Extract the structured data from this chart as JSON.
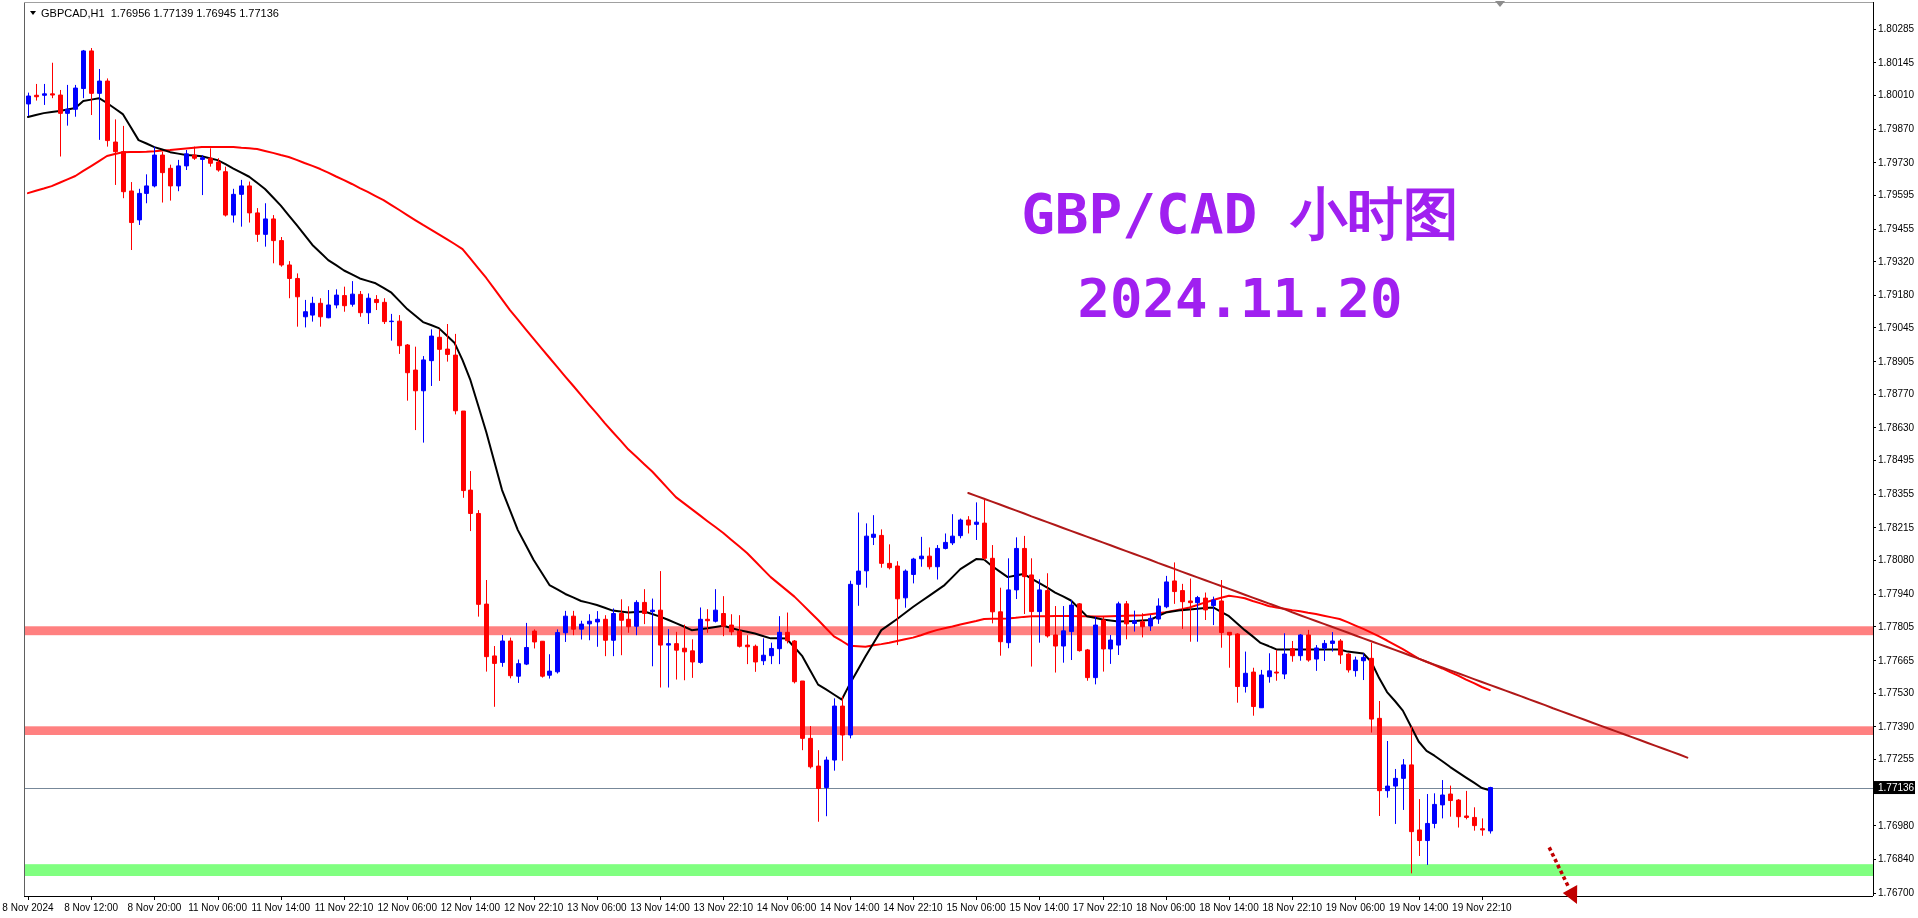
{
  "chart_data": {
    "type": "candlestick",
    "title": "GBP/CAD 小时图",
    "subtitle": "2024.11.20",
    "annotations": [
      "GBPCAD,H1  1.76956 1.77139 1.76945 1.77136"
    ],
    "categories": [
      "8 Nov 2024",
      null,
      null,
      null,
      null,
      null,
      null,
      null,
      "8 Nov 12:00",
      null,
      null,
      null,
      null,
      null,
      null,
      null,
      "8 Nov 20:00",
      null,
      null,
      null,
      null,
      null,
      null,
      null,
      "11 Nov 06:00",
      null,
      null,
      null,
      null,
      null,
      null,
      null,
      "11 Nov 14:00",
      null,
      null,
      null,
      null,
      null,
      null,
      null,
      "11 Nov 22:10",
      null,
      null,
      null,
      null,
      null,
      null,
      null,
      "12 Nov 06:00",
      null,
      null,
      null,
      null,
      null,
      null,
      null,
      "12 Nov 14:00",
      null,
      null,
      null,
      null,
      null,
      null,
      null,
      "12 Nov 22:10",
      null,
      null,
      null,
      null,
      null,
      null,
      null,
      "13 Nov 06:00",
      null,
      null,
      null,
      null,
      null,
      null,
      null,
      "13 Nov 14:00",
      null,
      null,
      null,
      null,
      null,
      null,
      null,
      "13 Nov 22:10",
      null,
      null,
      null,
      null,
      null,
      null,
      null,
      "14 Nov 06:00",
      null,
      null,
      null,
      null,
      null,
      null,
      null,
      "14 Nov 14:00",
      null,
      null,
      null,
      null,
      null,
      null,
      null,
      "14 Nov 22:10",
      null,
      null,
      null,
      null,
      null,
      null,
      null,
      "15 Nov 06:00",
      null,
      null,
      null,
      null,
      null,
      null,
      null,
      "15 Nov 14:00",
      null,
      null,
      null,
      null,
      null,
      null,
      null,
      "17 Nov 22:10",
      null,
      null,
      null,
      null,
      null,
      null,
      null,
      "18 Nov 06:00",
      null,
      null,
      null,
      null,
      null,
      null,
      null,
      "18 Nov 14:00",
      null,
      null,
      null,
      null,
      null,
      null,
      null,
      "18 Nov 22:10",
      null,
      null,
      null,
      null,
      null,
      null,
      null,
      "19 Nov 06:00",
      null,
      null,
      null,
      null,
      null,
      null,
      null,
      "19 Nov 14:00",
      null,
      null,
      null,
      null,
      null,
      null,
      null,
      "19 Nov 22:10",
      null,
      null,
      null,
      null,
      null,
      null,
      null,
      null,
      null,
      null,
      null,
      null,
      null,
      null,
      null,
      null,
      null,
      null,
      null,
      null,
      null,
      null,
      null,
      null,
      null,
      null,
      null,
      null,
      null,
      null,
      null,
      null,
      null,
      null,
      null,
      null,
      null,
      null,
      null,
      null,
      null,
      null,
      null,
      null,
      null,
      null,
      null,
      null,
      null
    ],
    "ylim": [
      1.76686,
      1.80395
    ],
    "yticks": [
      1.80285,
      1.80145,
      {
        "value": 1.8001,
        "label": "1.80010"
      },
      {
        "value": 1.7987,
        "label": "1.79870"
      },
      {
        "value": 1.7973,
        "label": "1.79730"
      },
      1.79595,
      1.79455,
      {
        "value": 1.7932,
        "label": "1.79320"
      },
      {
        "value": 1.7918,
        "label": "1.79180"
      },
      1.79045,
      1.78905,
      {
        "value": 1.7877,
        "label": "1.78770"
      },
      {
        "value": 1.7863,
        "label": "1.78630"
      },
      1.78495,
      1.78355,
      1.78215,
      {
        "value": 1.7808,
        "label": "1.78080"
      },
      {
        "value": 1.7794,
        "label": "1.77940"
      },
      1.77805,
      1.77665,
      {
        "value": 1.7753,
        "label": "1.77530"
      },
      {
        "value": 1.7739,
        "label": "1.77390"
      },
      1.77255,
      {
        "value": 1.7698,
        "label": "1.76980"
      },
      {
        "value": 1.7684,
        "label": "1.76840"
      },
      {
        "value": 1.767,
        "label": "1.76700"
      }
    ],
    "ref_lines": [
      {
        "axis": "y",
        "value": 1.77136,
        "label": "1.77136",
        "color": "#778899"
      }
    ],
    "bands": [
      {
        "axis": "y",
        "from": 1.77768,
        "to": 1.77805,
        "color": "#ff8080"
      },
      {
        "axis": "y",
        "from": 1.77354,
        "to": 1.7739,
        "color": "#ff8080"
      },
      {
        "axis": "y",
        "from": 1.76769,
        "to": 1.76818,
        "color": "#80ff80"
      }
    ],
    "ohlc": [
      [
        1.79972,
        1.80019,
        1.79922,
        1.80005
      ],
      [
        1.80008,
        1.80055,
        1.79986,
        1.80002
      ],
      [
        1.80008,
        1.80055,
        1.79968,
        1.80014
      ],
      [
        1.80014,
        1.80143,
        1.79996,
        1.80009
      ],
      [
        1.80009,
        1.8003,
        1.79754,
        1.79933
      ],
      [
        1.79933,
        1.80051,
        1.79882,
        1.7995
      ],
      [
        1.7995,
        1.80051,
        1.79919,
        1.80038
      ],
      [
        1.80036,
        1.80196,
        1.79996,
        1.80192
      ],
      [
        1.80192,
        1.80204,
        1.79926,
        1.80016
      ],
      [
        1.80016,
        1.80117,
        1.79823,
        1.80067
      ],
      [
        1.80067,
        1.80078,
        1.79795,
        1.7982
      ],
      [
        1.79814,
        1.79908,
        1.79636,
        1.79774
      ],
      [
        1.79774,
        1.79881,
        1.79581,
        1.79608
      ],
      [
        1.79611,
        1.79648,
        1.79366,
        1.7948
      ],
      [
        1.79491,
        1.7962,
        1.7947,
        1.79601
      ],
      [
        1.79601,
        1.7968,
        1.7956,
        1.79632
      ],
      [
        1.79632,
        1.79795,
        1.79626,
        1.7976
      ],
      [
        1.7976,
        1.79774,
        1.79563,
        1.79687
      ],
      [
        1.79705,
        1.7972,
        1.79571,
        1.79632
      ],
      [
        1.79632,
        1.7974,
        1.7961,
        1.79715
      ],
      [
        1.79715,
        1.79781,
        1.79698,
        1.79765
      ],
      [
        1.7976,
        1.79795,
        1.7974,
        1.79747
      ],
      [
        1.79742,
        1.7976,
        1.79594,
        1.79749
      ],
      [
        1.79747,
        1.79788,
        1.79712,
        1.79726
      ],
      [
        1.79731,
        1.79747,
        1.79691,
        1.79698
      ],
      [
        1.79691,
        1.79712,
        1.79505,
        1.79511
      ],
      [
        1.79511,
        1.7962,
        1.7948,
        1.79597
      ],
      [
        1.79597,
        1.79657,
        1.79463,
        1.79632
      ],
      [
        1.79632,
        1.7965,
        1.7948,
        1.7952
      ],
      [
        1.7952,
        1.7954,
        1.794,
        1.79431
      ],
      [
        1.79431,
        1.7956,
        1.7938,
        1.79495
      ],
      [
        1.79495,
        1.79511,
        1.79311,
        1.79405
      ],
      [
        1.79405,
        1.7942,
        1.79297,
        1.79304
      ],
      [
        1.79304,
        1.7932,
        1.79166,
        1.79248
      ],
      [
        1.79248,
        1.79269,
        1.79048,
        1.79172
      ],
      [
        1.79089,
        1.79159,
        1.79045,
        1.7911
      ],
      [
        1.79096,
        1.79172,
        1.79069,
        1.79145
      ],
      [
        1.79145,
        1.79166,
        1.79048,
        1.79089
      ],
      [
        1.79085,
        1.792,
        1.79083,
        1.79138
      ],
      [
        1.79138,
        1.79203,
        1.79124,
        1.79179
      ],
      [
        1.79177,
        1.79214,
        1.7911,
        1.79135
      ],
      [
        1.79141,
        1.79237,
        1.79131,
        1.79183
      ],
      [
        1.79182,
        1.79196,
        1.79089,
        1.79106
      ],
      [
        1.79106,
        1.79186,
        1.79059,
        1.79166
      ],
      [
        1.79161,
        1.79179,
        1.79117,
        1.79148
      ],
      [
        1.79149,
        1.79166,
        1.79059,
        1.79069
      ],
      [
        1.79069,
        1.79101,
        1.7899,
        1.79071
      ],
      [
        1.79071,
        1.79096,
        1.78935,
        1.78969
      ],
      [
        1.78972,
        1.78976,
        1.78741,
        1.78857
      ],
      [
        1.78868,
        1.78965,
        1.78619,
        1.78782
      ],
      [
        1.78782,
        1.78926,
        1.78567,
        1.7891
      ],
      [
        1.78907,
        1.79037,
        1.78802,
        1.79009
      ],
      [
        1.79004,
        1.79037,
        1.78823,
        1.78954
      ],
      [
        1.78955,
        1.79059,
        1.78903,
        1.78933
      ],
      [
        1.7893,
        1.79018,
        1.78684,
        1.78699
      ],
      [
        1.78698,
        1.78698,
        1.78338,
        1.78368
      ],
      [
        1.7837,
        1.78449,
        1.782,
        1.78273
      ],
      [
        1.78273,
        1.78287,
        1.77845,
        1.77896
      ],
      [
        1.77897,
        1.77997,
        1.77617,
        1.77679
      ],
      [
        1.77682,
        1.77723,
        1.77471,
        1.77651
      ],
      [
        1.77655,
        1.77769,
        1.77637,
        1.77744
      ],
      [
        1.77744,
        1.77758,
        1.77589,
        1.776
      ],
      [
        1.77598,
        1.77667,
        1.7757,
        1.7765
      ],
      [
        1.77648,
        1.77819,
        1.77644,
        1.77717
      ],
      [
        1.77785,
        1.77792,
        1.77713,
        1.7774
      ],
      [
        1.77743,
        1.77743,
        1.77592,
        1.77598
      ],
      [
        1.77602,
        1.77689,
        1.77588,
        1.77619
      ],
      [
        1.77616,
        1.77792,
        1.77609,
        1.77779
      ],
      [
        1.77778,
        1.77869,
        1.7774,
        1.77847
      ],
      [
        1.77847,
        1.77869,
        1.77768,
        1.77793
      ],
      [
        1.77793,
        1.77828,
        1.7775,
        1.77814
      ],
      [
        1.77815,
        1.77855,
        1.77747,
        1.77826
      ],
      [
        1.77823,
        1.77868,
        1.7772,
        1.77834
      ],
      [
        1.77834,
        1.77851,
        1.77681,
        1.77747
      ],
      [
        1.77747,
        1.77879,
        1.77681,
        1.77858
      ],
      [
        1.77858,
        1.77917,
        1.77685,
        1.7783
      ],
      [
        1.77834,
        1.77888,
        1.77778,
        1.77803
      ],
      [
        1.77805,
        1.77913,
        1.77768,
        1.77904
      ],
      [
        1.77904,
        1.77959,
        1.77814,
        1.77858
      ],
      [
        1.77866,
        1.7792,
        1.77639,
        1.77872
      ],
      [
        1.77872,
        1.78034,
        1.77551,
        1.77727
      ],
      [
        1.77727,
        1.77793,
        1.77551,
        1.77733
      ],
      [
        1.77733,
        1.77782,
        1.77584,
        1.77706
      ],
      [
        1.77714,
        1.77812,
        1.77581,
        1.77699
      ],
      [
        1.77703,
        1.77751,
        1.77591,
        1.77657
      ],
      [
        1.77655,
        1.77883,
        1.7765,
        1.77834
      ],
      [
        1.77834,
        1.77876,
        1.77778,
        1.77828
      ],
      [
        1.77826,
        1.77959,
        1.77821,
        1.77872
      ],
      [
        1.77858,
        1.7793,
        1.77764,
        1.77805
      ],
      [
        1.7781,
        1.77855,
        1.77768,
        1.77782
      ],
      [
        1.77785,
        1.77851,
        1.77717,
        1.77722
      ],
      [
        1.77727,
        1.77768,
        1.77648,
        1.7772
      ],
      [
        1.77722,
        1.77729,
        1.77616,
        1.77657
      ],
      [
        1.77662,
        1.77755,
        1.77644,
        1.77685
      ],
      [
        1.77683,
        1.77737,
        1.77648,
        1.77713
      ],
      [
        1.77712,
        1.77847,
        1.77648,
        1.7778
      ],
      [
        1.7778,
        1.77862,
        1.77734,
        1.77745
      ],
      [
        1.77744,
        1.77748,
        1.77568,
        1.77575
      ],
      [
        1.77578,
        1.77578,
        1.77291,
        1.7734
      ],
      [
        1.7734,
        1.77391,
        1.77215,
        1.77222
      ],
      [
        1.77225,
        1.77291,
        1.76994,
        1.77132
      ],
      [
        1.77136,
        1.77264,
        1.77017,
        1.7725
      ],
      [
        1.7725,
        1.77506,
        1.77206,
        1.77474
      ],
      [
        1.77474,
        1.77515,
        1.77247,
        1.77354
      ],
      [
        1.77354,
        1.77994,
        1.7734,
        1.77979
      ],
      [
        1.77979,
        1.78277,
        1.7789,
        1.78034
      ],
      [
        1.78035,
        1.78232,
        1.77965,
        1.78179
      ],
      [
        1.78174,
        1.78266,
        1.78142,
        1.78187
      ],
      [
        1.78182,
        1.78207,
        1.78048,
        1.78066
      ],
      [
        1.78066,
        1.78145,
        1.78041,
        1.78048
      ],
      [
        1.78055,
        1.78075,
        1.77727,
        1.77919
      ],
      [
        1.77923,
        1.78041,
        1.77882,
        1.78034
      ],
      [
        1.7802,
        1.78089,
        1.77983,
        1.78084
      ],
      [
        1.78085,
        1.78176,
        1.78052,
        1.78096
      ],
      [
        1.78096,
        1.78132,
        1.78041,
        1.78052
      ],
      [
        1.78052,
        1.78142,
        1.77999,
        1.78128
      ],
      [
        1.78128,
        1.7819,
        1.78124,
        1.78153
      ],
      [
        1.78151,
        1.7827,
        1.78142,
        1.78179
      ],
      [
        1.78181,
        1.78252,
        1.7817,
        1.78246
      ],
      [
        1.78246,
        1.78262,
        1.7819,
        1.78225
      ],
      [
        1.78228,
        1.78319,
        1.78163,
        1.78237
      ],
      [
        1.78233,
        1.78333,
        1.7808,
        1.78087
      ],
      [
        1.78087,
        1.78142,
        1.77817,
        1.77865
      ],
      [
        1.77865,
        1.77965,
        1.77683,
        1.77741
      ],
      [
        1.77737,
        1.78087,
        1.77714,
        1.77956
      ],
      [
        1.77956,
        1.78174,
        1.77918,
        1.78128
      ],
      [
        1.78128,
        1.7818,
        1.77856,
        1.78011
      ],
      [
        1.78018,
        1.78087,
        1.77638,
        1.77866
      ],
      [
        1.77866,
        1.78,
        1.77737,
        1.77956
      ],
      [
        1.77953,
        1.78025,
        1.77758,
        1.77765
      ],
      [
        1.77769,
        1.77889,
        1.77613,
        1.77723
      ],
      [
        1.77723,
        1.77889,
        1.77654,
        1.77786
      ],
      [
        1.77783,
        1.77914,
        1.77665,
        1.77893
      ],
      [
        1.77898,
        1.77901,
        1.777,
        1.77704
      ],
      [
        1.77707,
        1.77711,
        1.77579,
        1.77592
      ],
      [
        1.77592,
        1.77845,
        1.77564,
        1.7781
      ],
      [
        1.77831,
        1.77845,
        1.77617,
        1.77711
      ],
      [
        1.77711,
        1.77769,
        1.77649,
        1.77748
      ],
      [
        1.77727,
        1.77907,
        1.77686,
        1.77898
      ],
      [
        1.77898,
        1.7791,
        1.77751,
        1.77815
      ],
      [
        1.77817,
        1.7787,
        1.77783,
        1.77828
      ],
      [
        1.77824,
        1.77859,
        1.77759,
        1.77803
      ],
      [
        1.77806,
        1.77852,
        1.77786,
        1.77838
      ],
      [
        1.77835,
        1.77921,
        1.77815,
        1.77889
      ],
      [
        1.77886,
        1.78014,
        1.7788,
        1.77989
      ],
      [
        1.77993,
        1.7807,
        1.77898,
        1.77949
      ],
      [
        1.77953,
        1.77981,
        1.77794,
        1.77907
      ],
      [
        1.7791,
        1.78003,
        1.77741,
        1.77903
      ],
      [
        1.77903,
        1.77931,
        1.77741,
        1.77924
      ],
      [
        1.77922,
        1.77945,
        1.77831,
        1.77873
      ],
      [
        1.77891,
        1.77928,
        1.7781,
        1.77914
      ],
      [
        1.7791,
        1.77997,
        1.77716,
        1.77779
      ],
      [
        1.7778,
        1.7778,
        1.77633,
        1.77769
      ],
      [
        1.77773,
        1.77776,
        1.77488,
        1.77555
      ],
      [
        1.77555,
        1.777,
        1.7753,
        1.7761
      ],
      [
        1.77615,
        1.77633,
        1.77434,
        1.77472
      ],
      [
        1.77467,
        1.77624,
        1.77467,
        1.77603
      ],
      [
        1.77596,
        1.77693,
        1.77571,
        1.7762
      ],
      [
        1.77615,
        1.77707,
        1.77579,
        1.77611
      ],
      [
        1.77607,
        1.77776,
        1.77586,
        1.7769
      ],
      [
        1.77712,
        1.77744,
        1.77658,
        1.77683
      ],
      [
        1.77683,
        1.77773,
        1.77662,
        1.77769
      ],
      [
        1.77769,
        1.7779,
        1.77658,
        1.77665
      ],
      [
        1.77669,
        1.77727,
        1.7762,
        1.77715
      ],
      [
        1.77714,
        1.77748,
        1.77661,
        1.77734
      ],
      [
        1.77734,
        1.77781,
        1.777,
        1.77744
      ],
      [
        1.77744,
        1.77752,
        1.77649,
        1.77686
      ],
      [
        1.7769,
        1.77693,
        1.77613,
        1.77624
      ],
      [
        1.77621,
        1.77679,
        1.77596,
        1.77665
      ],
      [
        1.77662,
        1.77693,
        1.77582,
        1.77676
      ],
      [
        1.77672,
        1.77737,
        1.77364,
        1.7742
      ],
      [
        1.77423,
        1.77495,
        1.77018,
        1.77123
      ],
      [
        1.77123,
        1.77329,
        1.77094,
        1.77142
      ],
      [
        1.77142,
        1.77213,
        1.76985,
        1.77174
      ],
      [
        1.77174,
        1.77254,
        1.77043,
        1.7723
      ],
      [
        1.7723,
        1.77389,
        1.7678,
        1.76953
      ],
      [
        1.7696,
        1.77088,
        1.76852,
        1.76916
      ],
      [
        1.76916,
        1.77109,
        1.76815,
        1.76987
      ],
      [
        1.76987,
        1.77112,
        1.76967,
        1.77066
      ],
      [
        1.77064,
        1.77167,
        1.77008,
        1.77105
      ],
      [
        1.77109,
        1.77144,
        1.77015,
        1.77082
      ],
      [
        1.77084,
        1.77088,
        1.7697,
        1.77015
      ],
      [
        1.77018,
        1.77122,
        1.77004,
        1.77012
      ],
      [
        1.77012,
        1.77054,
        1.76957,
        1.76978
      ],
      [
        1.76965,
        1.77008,
        1.76936,
        1.7696
      ],
      [
        1.76956,
        1.77139,
        1.76945,
        1.77136
      ],
      null,
      null,
      null,
      null,
      null,
      null,
      null,
      null,
      null,
      null,
      null,
      null,
      null,
      null,
      null,
      null,
      null,
      null,
      null,
      null,
      null,
      null,
      null,
      null,
      null,
      null,
      null,
      null,
      null,
      null,
      null,
      null,
      null,
      null,
      null,
      null,
      null,
      null,
      null,
      null,
      null,
      null,
      null,
      null,
      null,
      null,
      null,
      null
    ],
    "colors": [
      "#0000ff",
      "#ff0000",
      "#0000ff",
      "#ff0000",
      "#ff0000",
      "#0000ff",
      "#0000ff",
      "#0000ff",
      "#ff0000",
      "#0000ff",
      "#ff0000",
      "#ff0000",
      "#ff0000",
      "#ff0000",
      "#0000ff",
      "#0000ff",
      "#0000ff",
      "#ff0000",
      "#ff0000",
      "#0000ff",
      "#0000ff",
      "#ff0000",
      "#0000ff",
      "#ff0000",
      "#ff0000",
      "#ff0000",
      "#0000ff",
      "#0000ff",
      "#ff0000",
      "#ff0000",
      "#0000ff",
      "#ff0000",
      "#ff0000",
      "#ff0000",
      "#ff0000",
      "#0000ff",
      "#0000ff",
      "#ff0000",
      "#0000ff",
      "#0000ff",
      "#ff0000",
      "#0000ff",
      "#ff0000",
      "#0000ff",
      "#ff0000",
      "#ff0000",
      "#0000ff",
      "#ff0000",
      "#ff0000",
      "#ff0000",
      "#0000ff",
      "#0000ff",
      "#ff0000",
      "#ff0000",
      "#ff0000",
      "#ff0000",
      "#ff0000",
      "#ff0000",
      "#ff0000",
      "#ff0000",
      "#0000ff",
      "#ff0000",
      "#0000ff",
      "#0000ff",
      "#ff0000",
      "#ff0000",
      "#0000ff",
      "#0000ff",
      "#0000ff",
      "#ff0000",
      "#0000ff",
      "#0000ff",
      "#0000ff",
      "#ff0000",
      "#0000ff",
      "#ff0000",
      "#ff0000",
      "#0000ff",
      "#ff0000",
      "#0000ff",
      "#ff0000",
      "#0000ff",
      "#ff0000",
      "#ff0000",
      "#ff0000",
      "#0000ff",
      "#ff0000",
      "#0000ff",
      "#ff0000",
      "#ff0000",
      "#ff0000",
      "#ff0000",
      "#ff0000",
      "#0000ff",
      "#0000ff",
      "#0000ff",
      "#ff0000",
      "#ff0000",
      "#ff0000",
      "#ff0000",
      "#ff0000",
      "#0000ff",
      "#0000ff",
      "#ff0000",
      "#0000ff",
      "#0000ff",
      "#0000ff",
      "#0000ff",
      "#ff0000",
      "#ff0000",
      "#ff0000",
      "#0000ff",
      "#0000ff",
      "#0000ff",
      "#ff0000",
      "#0000ff",
      "#0000ff",
      "#0000ff",
      "#0000ff",
      "#ff0000",
      "#0000ff",
      "#ff0000",
      "#ff0000",
      "#ff0000",
      "#0000ff",
      "#0000ff",
      "#ff0000",
      "#ff0000",
      "#0000ff",
      "#ff0000",
      "#ff0000",
      "#0000ff",
      "#0000ff",
      "#ff0000",
      "#ff0000",
      "#0000ff",
      "#ff0000",
      "#0000ff",
      "#0000ff",
      "#ff0000",
      "#0000ff",
      "#ff0000",
      "#0000ff",
      "#0000ff",
      "#0000ff",
      "#ff0000",
      "#ff0000",
      "#ff0000",
      "#0000ff",
      "#ff0000",
      "#0000ff",
      "#ff0000",
      "#ff0000",
      "#ff0000",
      "#0000ff",
      "#ff0000",
      "#0000ff",
      "#0000ff",
      "#ff0000",
      "#0000ff",
      "#ff0000",
      "#0000ff",
      "#ff0000",
      "#0000ff",
      "#0000ff",
      "#0000ff",
      "#ff0000",
      "#ff0000",
      "#0000ff",
      "#0000ff",
      "#ff0000",
      "#ff0000",
      "#0000ff",
      "#0000ff",
      "#0000ff",
      "#ff0000",
      "#ff0000",
      "#0000ff",
      "#0000ff",
      "#0000ff",
      "#ff0000",
      "#ff0000",
      "#ff0000",
      "#ff0000",
      "#ff0000",
      "#0000ff",
      null,
      null,
      null,
      null,
      null,
      null,
      null,
      null,
      null,
      null,
      null,
      null,
      null,
      null,
      null,
      null,
      null,
      null,
      null,
      null,
      null,
      null,
      null,
      null,
      null,
      null,
      null,
      null,
      null,
      null,
      null,
      null,
      null,
      null,
      null,
      null,
      null,
      null,
      null,
      null,
      null,
      null,
      null,
      null,
      null,
      null,
      null,
      null
    ],
    "series": [
      {
        "type": "line",
        "color": "#ff0000",
        "values": [
          1.79602,
          1.79612,
          1.79621,
          1.79631,
          1.79645,
          1.79659,
          1.79673,
          1.79694,
          1.79714,
          1.79735,
          1.79756,
          1.79764,
          1.79772,
          1.79773,
          1.79773,
          1.79774,
          1.79776,
          1.79779,
          1.79781,
          1.79784,
          1.79787,
          1.7979,
          1.79793,
          1.79793,
          1.79793,
          1.79793,
          1.79793,
          1.7979,
          1.79788,
          1.79785,
          1.79777,
          1.79769,
          1.7976,
          1.79752,
          1.7974,
          1.79727,
          1.79715,
          1.79702,
          1.79687,
          1.79671,
          1.79656,
          1.7964,
          1.79623,
          1.79607,
          1.7959,
          1.79573,
          1.79552,
          1.79532,
          1.79511,
          1.7949,
          1.7947,
          1.79451,
          1.79431,
          1.79411,
          1.79391,
          1.7937,
          1.7933,
          1.7929,
          1.7925,
          1.79206,
          1.79161,
          1.79117,
          1.79077,
          1.79037,
          1.78997,
          1.78958,
          1.78919,
          1.7888,
          1.78841,
          1.78803,
          1.78764,
          1.78725,
          1.78687,
          1.78648,
          1.78611,
          1.78575,
          1.78538,
          1.78508,
          1.78477,
          1.78447,
          1.78412,
          1.78376,
          1.78341,
          1.78316,
          1.78291,
          1.78266,
          1.78241,
          1.78217,
          1.78192,
          1.78164,
          1.78137,
          1.78109,
          1.78076,
          1.78042,
          1.78009,
          1.77982,
          1.77955,
          1.77928,
          1.77896,
          1.77863,
          1.77831,
          1.77797,
          1.77763,
          1.77744,
          1.77724,
          1.77722,
          1.7772,
          1.77726,
          1.77731,
          1.77737,
          1.77744,
          1.77751,
          1.77758,
          1.77768,
          1.77779,
          1.77789,
          1.77797,
          1.77804,
          1.77812,
          1.7782,
          1.77827,
          1.77835,
          1.77836,
          1.77836,
          1.77837,
          1.7784,
          1.77844,
          1.77847,
          1.77847,
          1.77847,
          1.77848,
          1.77848,
          1.77848,
          1.77847,
          1.77847,
          1.77846,
          1.77846,
          1.77847,
          1.77848,
          1.77849,
          1.7785,
          1.77851,
          1.77855,
          1.77859,
          1.77863,
          1.7787,
          1.77876,
          1.77883,
          1.77893,
          1.77904,
          1.77914,
          1.77923,
          1.77932,
          1.77927,
          1.77921,
          1.7791,
          1.779,
          1.77889,
          1.77883,
          1.77878,
          1.77872,
          1.77867,
          1.77861,
          1.77856,
          1.77849,
          1.77842,
          1.77835,
          1.77822,
          1.77808,
          1.77794,
          1.77779,
          1.77763,
          1.77746,
          1.77728,
          1.7771,
          1.77691,
          1.77671,
          1.77658,
          1.77644,
          1.7763,
          1.77615,
          1.776,
          1.77584,
          1.77569,
          1.77553,
          1.7754,
          null,
          null,
          null,
          null,
          null,
          null,
          null,
          null,
          null,
          null,
          null,
          null,
          null,
          null,
          null,
          null,
          null,
          null,
          null,
          null,
          null,
          null,
          null,
          null,
          null,
          null,
          null,
          null,
          null,
          null,
          null,
          null,
          null,
          null,
          null,
          null,
          null,
          null,
          null,
          null,
          null,
          null,
          null,
          null,
          null,
          null,
          null,
          null
        ]
      },
      {
        "type": "line",
        "color": "#000000",
        "values": [
          1.79918,
          1.79926,
          1.79934,
          1.79939,
          1.79943,
          1.79949,
          1.79955,
          1.79984,
          1.7999,
          1.79996,
          1.79976,
          1.79953,
          1.7993,
          1.79876,
          1.79822,
          1.79808,
          1.79793,
          1.79783,
          1.79772,
          1.79766,
          1.7976,
          1.79758,
          1.79755,
          1.79747,
          1.79739,
          1.79722,
          1.79704,
          1.79687,
          1.7967,
          1.79645,
          1.79619,
          1.79585,
          1.7955,
          1.7951,
          1.7947,
          1.79429,
          1.79387,
          1.79356,
          1.79324,
          1.79303,
          1.79281,
          1.79265,
          1.79248,
          1.79238,
          1.79228,
          1.79209,
          1.79189,
          1.79155,
          1.79121,
          1.79094,
          1.79067,
          1.79055,
          1.79042,
          1.79011,
          1.7898,
          1.78909,
          1.78826,
          1.78719,
          1.78611,
          1.78491,
          1.7837,
          1.78287,
          1.78204,
          1.78142,
          1.7808,
          1.78028,
          1.77976,
          1.77958,
          1.77939,
          1.77925,
          1.7791,
          1.77902,
          1.77893,
          1.77882,
          1.7787,
          1.77866,
          1.77862,
          1.77864,
          1.77866,
          1.77856,
          1.77845,
          1.77832,
          1.77818,
          1.77804,
          1.77789,
          1.77793,
          1.77797,
          1.77802,
          1.77807,
          1.77798,
          1.77789,
          1.77782,
          1.77775,
          1.77765,
          1.77755,
          1.77755,
          1.77754,
          1.77718,
          1.77681,
          1.77622,
          1.77563,
          1.77543,
          1.77522,
          1.77501,
          1.77565,
          1.77623,
          1.77681,
          1.77735,
          1.77789,
          1.77812,
          1.77835,
          1.7786,
          1.77885,
          1.77908,
          1.7793,
          1.77953,
          1.77976,
          1.78009,
          1.78042,
          1.78063,
          1.78084,
          1.78082,
          1.78055,
          1.78032,
          1.78009,
          1.78016,
          1.78022,
          1.78003,
          1.77984,
          1.77965,
          1.77945,
          1.77929,
          1.77912,
          1.7788,
          1.77847,
          1.7784,
          1.77833,
          1.77829,
          1.77825,
          1.77826,
          1.77827,
          1.77829,
          1.77831,
          1.77847,
          1.77862,
          1.77867,
          1.77872,
          1.77875,
          1.77878,
          1.77881,
          1.77883,
          1.77865,
          1.77847,
          1.77818,
          1.77789,
          1.77763,
          1.77736,
          1.77723,
          1.77709,
          1.77709,
          1.77709,
          1.77709,
          1.77709,
          1.77709,
          1.77709,
          1.77709,
          1.77709,
          1.777,
          1.77696,
          1.77692,
          1.77658,
          1.7759,
          1.77532,
          1.77495,
          1.77455,
          1.77391,
          1.77327,
          1.77288,
          1.77268,
          1.77245,
          1.77221,
          1.77199,
          1.77177,
          1.77156,
          1.77134,
          1.77125,
          null,
          null,
          null,
          null,
          null,
          null,
          null,
          null,
          null,
          null,
          null,
          null,
          null,
          null,
          null,
          null,
          null,
          null,
          null,
          null,
          null,
          null,
          null,
          null,
          null,
          null,
          null,
          null,
          null,
          null,
          null,
          null,
          null,
          null,
          null,
          null,
          null,
          null,
          null,
          null,
          null,
          null,
          null,
          null,
          null,
          null,
          null,
          null
        ]
      },
      {
        "type": "line",
        "color": "#b01818",
        "values": [
          null,
          null,
          null,
          null,
          null,
          null,
          null,
          null,
          null,
          null,
          null,
          null,
          null,
          null,
          null,
          null,
          null,
          null,
          null,
          null,
          null,
          null,
          null,
          null,
          null,
          null,
          null,
          null,
          null,
          null,
          null,
          null,
          null,
          null,
          null,
          null,
          null,
          null,
          null,
          null,
          null,
          null,
          null,
          null,
          null,
          null,
          null,
          null,
          null,
          null,
          null,
          null,
          null,
          null,
          null,
          null,
          null,
          null,
          null,
          null,
          null,
          null,
          null,
          null,
          null,
          null,
          null,
          null,
          null,
          null,
          null,
          null,
          null,
          null,
          null,
          null,
          null,
          null,
          null,
          null,
          null,
          null,
          null,
          null,
          null,
          null,
          null,
          null,
          null,
          null,
          null,
          null,
          null,
          null,
          null,
          null,
          null,
          null,
          null,
          null,
          null,
          null,
          null,
          null,
          null,
          null,
          null,
          null,
          null,
          null,
          null,
          null,
          null,
          null,
          null,
          null,
          null,
          null,
          null,
          1.78358,
          1.78346,
          1.78334,
          1.78322,
          1.7831,
          1.78298,
          1.78286,
          1.78274,
          1.78261,
          1.78249,
          1.78237,
          1.78225,
          1.78213,
          1.78201,
          1.78189,
          1.78177,
          1.78165,
          1.78153,
          1.78141,
          1.78129,
          1.78117,
          1.78105,
          1.78093,
          1.78081,
          1.78068,
          1.78056,
          1.78044,
          1.78032,
          1.7802,
          1.78008,
          1.77996,
          1.77984,
          1.77972,
          1.7796,
          1.77948,
          1.77936,
          1.77924,
          1.77912,
          1.779,
          1.77888,
          1.77876,
          1.77863,
          1.77851,
          1.77839,
          1.77827,
          1.77815,
          1.77803,
          1.77791,
          1.77779,
          1.77767,
          1.77755,
          1.77743,
          1.77731,
          1.77719,
          1.77707,
          1.77695,
          1.77683,
          1.77671,
          1.77658,
          1.77646,
          1.77634,
          1.77622,
          1.7761,
          1.77598,
          1.77586,
          1.77574,
          1.77562,
          1.7755,
          1.77538,
          1.77526,
          1.77514,
          1.77502,
          1.7749,
          1.77478,
          1.77465,
          1.77453,
          1.77441,
          1.77429,
          1.77417,
          1.77405,
          1.77393,
          1.77381,
          1.77369,
          1.77357,
          1.77345,
          1.77333,
          1.77321,
          1.77309,
          1.77297,
          1.77285,
          1.77273,
          1.7726,
          null,
          null,
          null,
          null,
          null,
          null,
          null,
          null,
          null,
          null,
          null,
          null,
          null,
          null,
          null,
          null,
          null,
          null,
          null,
          null,
          null,
          null,
          null
        ]
      }
    ]
  }
}
